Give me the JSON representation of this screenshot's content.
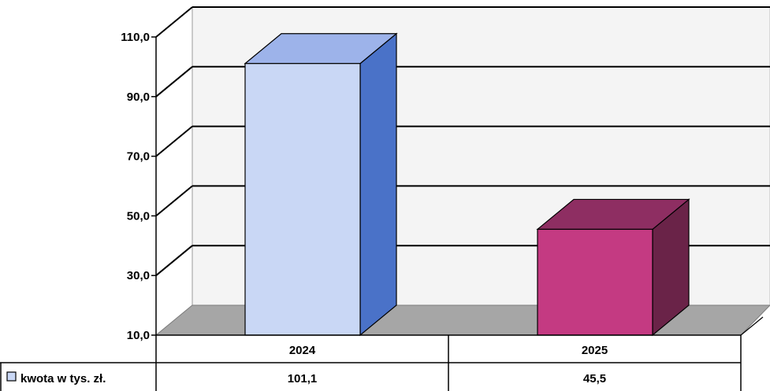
{
  "chart_data": {
    "type": "bar",
    "categories": [
      "2024",
      "2025"
    ],
    "series": [
      {
        "name": "kwota w tys. zł.",
        "values": [
          101.1,
          45.5
        ],
        "value_labels": [
          "101,1",
          "45,5"
        ]
      }
    ],
    "ylim": [
      10,
      110
    ],
    "yticks": [
      10,
      30,
      50,
      70,
      90,
      110
    ],
    "ytick_labels": [
      "10,0",
      "30,0",
      "50,0",
      "70,0",
      "90,0",
      "110,0"
    ],
    "grid": true,
    "legend": "data-table-left",
    "colors": {
      "bars": [
        {
          "front": "#c9d7f5",
          "side": "#4a72c8",
          "top": "#9db3ea"
        },
        {
          "front": "#c43a82",
          "side": "#6a2348",
          "top": "#8e2e62"
        }
      ],
      "legend_swatch": "#c9d7f5"
    }
  }
}
